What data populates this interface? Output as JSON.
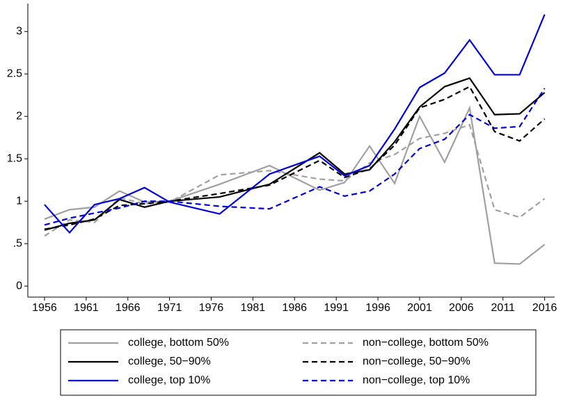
{
  "chart_data": {
    "type": "line",
    "x": [
      1956,
      1959,
      1962,
      1965,
      1968,
      1971,
      1977,
      1983,
      1989,
      1992,
      1995,
      1998,
      2001,
      2004,
      2007,
      2010,
      2013,
      2016
    ],
    "series": [
      {
        "name": "college, bottom 50%",
        "color": "#a0a0a0",
        "style": "solid",
        "values": [
          0.79,
          0.9,
          0.93,
          1.12,
          0.99,
          1.0,
          1.2,
          1.42,
          1.13,
          1.22,
          1.65,
          1.21,
          2.0,
          1.46,
          2.1,
          0.27,
          0.26,
          0.49
        ]
      },
      {
        "name": "non−college, bottom 50%",
        "color": "#a0a0a0",
        "style": "dashed",
        "values": [
          0.59,
          0.78,
          0.75,
          1.04,
          0.97,
          0.99,
          1.31,
          1.36,
          1.26,
          1.24,
          1.45,
          1.55,
          1.74,
          1.8,
          1.9,
          0.9,
          0.81,
          1.03
        ]
      },
      {
        "name": "college, 50−90%",
        "color": "#000000",
        "style": "solid",
        "values": [
          0.66,
          0.74,
          0.78,
          1.02,
          0.93,
          1.0,
          1.05,
          1.2,
          1.57,
          1.32,
          1.37,
          1.7,
          2.11,
          2.35,
          2.45,
          2.02,
          2.03,
          2.28
        ]
      },
      {
        "name": "non−college, 50−90%",
        "color": "#000000",
        "style": "dashed",
        "values": [
          0.67,
          0.72,
          0.79,
          0.95,
          0.97,
          1.0,
          1.09,
          1.19,
          1.48,
          1.28,
          1.38,
          1.66,
          2.1,
          2.2,
          2.35,
          1.82,
          1.71,
          1.97
        ]
      },
      {
        "name": "college, top 10%",
        "color": "#0000d8",
        "style": "solid",
        "values": [
          0.96,
          0.63,
          0.96,
          1.03,
          1.16,
          0.99,
          0.85,
          1.32,
          1.53,
          1.3,
          1.42,
          1.85,
          2.34,
          2.51,
          2.9,
          2.49,
          2.49,
          3.2
        ]
      },
      {
        "name": "non−college, top 10%",
        "color": "#0000d8",
        "style": "dashed",
        "values": [
          0.72,
          0.8,
          0.86,
          0.92,
          1.0,
          1.0,
          0.94,
          0.91,
          1.17,
          1.06,
          1.12,
          1.32,
          1.62,
          1.73,
          2.02,
          1.86,
          1.88,
          2.33
        ]
      }
    ],
    "xlim": [
      1954,
      2017.2
    ],
    "xticks": [
      1956,
      1961,
      1966,
      1971,
      1976,
      1981,
      1986,
      1991,
      1996,
      2001,
      2006,
      2011,
      2016
    ],
    "ylim": [
      -0.13,
      3.33
    ],
    "yticks": [
      0,
      {
        "value": 0.5,
        "label": ".5"
      },
      1,
      1.5,
      2,
      2.5,
      3
    ],
    "legend": "bottom"
  }
}
